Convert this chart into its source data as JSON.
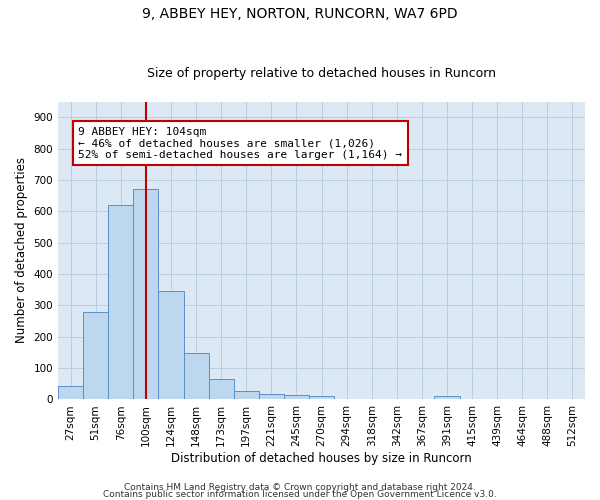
{
  "title": "9, ABBEY HEY, NORTON, RUNCORN, WA7 6PD",
  "subtitle": "Size of property relative to detached houses in Runcorn",
  "xlabel": "Distribution of detached houses by size in Runcorn",
  "ylabel": "Number of detached properties",
  "categories": [
    "27sqm",
    "51sqm",
    "76sqm",
    "100sqm",
    "124sqm",
    "148sqm",
    "173sqm",
    "197sqm",
    "221sqm",
    "245sqm",
    "270sqm",
    "294sqm",
    "318sqm",
    "342sqm",
    "367sqm",
    "391sqm",
    "415sqm",
    "439sqm",
    "464sqm",
    "488sqm",
    "512sqm"
  ],
  "values": [
    42,
    278,
    620,
    670,
    347,
    148,
    65,
    28,
    18,
    13,
    12,
    0,
    0,
    0,
    0,
    10,
    0,
    0,
    0,
    0,
    0
  ],
  "bar_color": "#bdd7ee",
  "bar_edge_color": "#5b8fc9",
  "vline_x": 3,
  "vline_color": "#c00000",
  "annotation_text": "9 ABBEY HEY: 104sqm\n← 46% of detached houses are smaller (1,026)\n52% of semi-detached houses are larger (1,164) →",
  "annotation_box_color": "#ffffff",
  "annotation_box_edge_color": "#c00000",
  "ylim": [
    0,
    950
  ],
  "yticks": [
    0,
    100,
    200,
    300,
    400,
    500,
    600,
    700,
    800,
    900
  ],
  "footer1": "Contains HM Land Registry data © Crown copyright and database right 2024.",
  "footer2": "Contains public sector information licensed under the Open Government Licence v3.0.",
  "background_color": "#ffffff",
  "plot_bg_color": "#dce9f5",
  "grid_color": "#b8cfe0",
  "title_fontsize": 10,
  "subtitle_fontsize": 9,
  "axis_label_fontsize": 8.5,
  "tick_fontsize": 7.5,
  "annotation_fontsize": 8,
  "footer_fontsize": 6.5
}
